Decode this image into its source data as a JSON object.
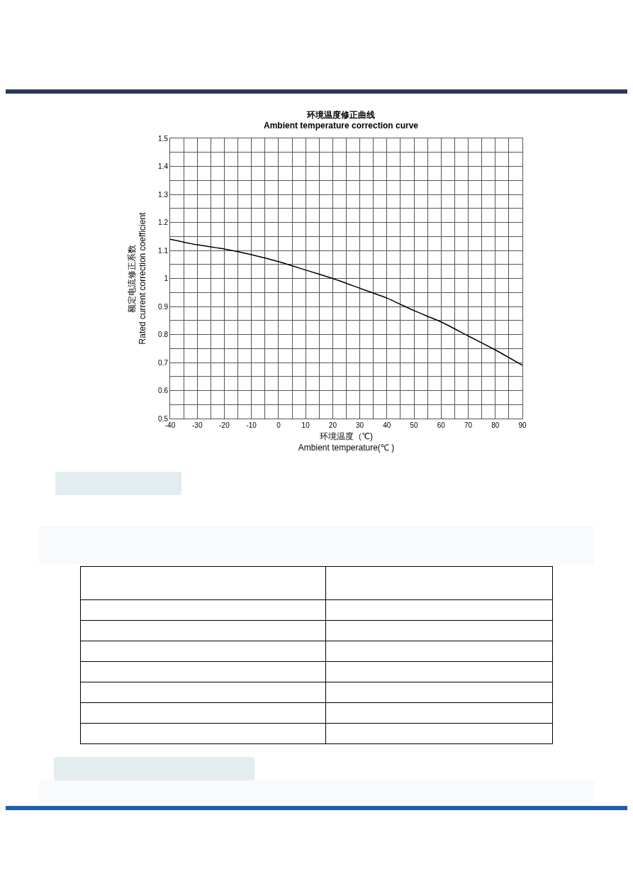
{
  "chart_data": {
    "type": "line",
    "title": "环境温度修正曲线\nAmbient temperature correction curve",
    "xlabel": "环境温度（℃)\nAmbient temperature(℃ )",
    "ylabel": "额定电流修正系数\nRated current correction coefficient",
    "x": [
      -40,
      -30,
      -20,
      -10,
      0,
      10,
      20,
      30,
      40,
      50,
      60,
      70,
      80,
      90
    ],
    "series": [
      {
        "color": "#000000",
        "values": [
          1.14,
          1.12,
          1.105,
          1.085,
          1.06,
          1.03,
          1.0,
          0.965,
          0.93,
          0.885,
          0.845,
          0.795,
          0.745,
          0.69
        ]
      }
    ],
    "xlim": [
      -40,
      90
    ],
    "xticks": [
      -40,
      {
        "value": -35,
        "label": null
      },
      -30,
      {
        "value": -25,
        "label": null
      },
      -20,
      {
        "value": -15,
        "label": null
      },
      -10,
      {
        "value": -5,
        "label": null
      },
      0,
      {
        "value": 5,
        "label": null
      },
      10,
      {
        "value": 15,
        "label": null
      },
      20,
      {
        "value": 25,
        "label": null
      },
      30,
      {
        "value": 35,
        "label": null
      },
      40,
      {
        "value": 45,
        "label": null
      },
      50,
      {
        "value": 55,
        "label": null
      },
      60,
      {
        "value": 65,
        "label": null
      },
      70,
      {
        "value": 75,
        "label": null
      },
      80,
      {
        "value": 85,
        "label": null
      },
      90
    ],
    "ylim": [
      0.5,
      1.5
    ],
    "yticks": [
      0.5,
      {
        "value": 0.55,
        "label": null
      },
      0.6,
      {
        "value": 0.65,
        "label": null
      },
      0.7,
      {
        "value": 0.75,
        "label": null
      },
      0.8,
      {
        "value": 0.85,
        "label": null
      },
      0.9,
      {
        "value": 0.95,
        "label": null
      },
      1,
      {
        "value": 1.05,
        "label": null
      },
      1.1,
      {
        "value": 1.15,
        "label": null
      },
      1.2,
      {
        "value": 1.25,
        "label": null
      },
      1.3,
      {
        "value": 1.35,
        "label": null
      },
      1.4,
      {
        "value": 1.45,
        "label": null
      },
      1.5
    ],
    "grid": true,
    "marker": "none",
    "line_style": "solid"
  }
}
